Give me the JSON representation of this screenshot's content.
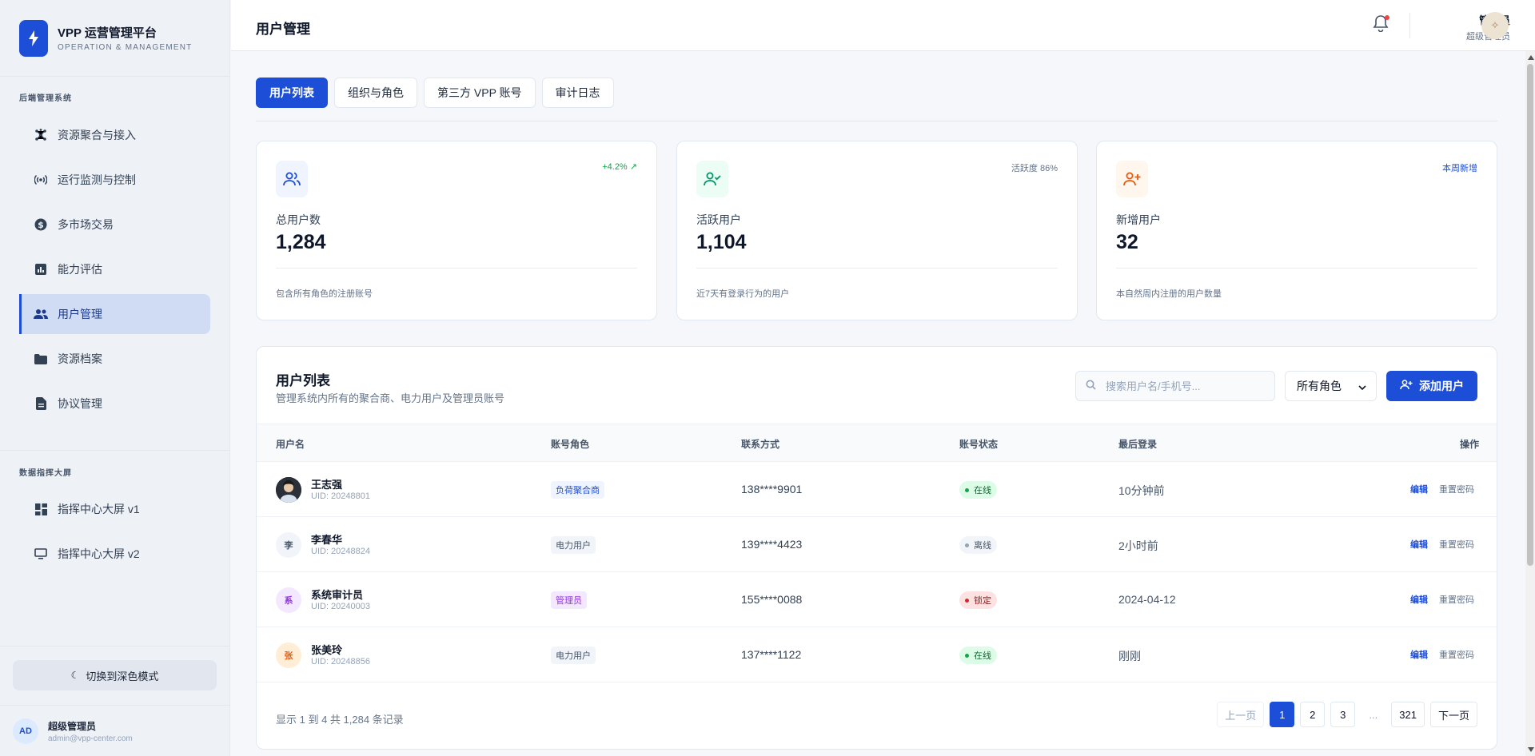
{
  "brand": {
    "title": "VPP 运营管理平台",
    "subtitle": "OPERATION & MANAGEMENT"
  },
  "sidebar": {
    "section1": "后端管理系统",
    "section2": "数据指挥大屏",
    "items": [
      {
        "label": "资源聚合与接入",
        "icon": "cluster-icon"
      },
      {
        "label": "运行监测与控制",
        "icon": "broadcast-icon"
      },
      {
        "label": "多市场交易",
        "icon": "dollar-icon"
      },
      {
        "label": "能力评估",
        "icon": "bar-chart-icon"
      },
      {
        "label": "用户管理",
        "icon": "users-icon",
        "active": true
      },
      {
        "label": "资源档案",
        "icon": "folder-icon"
      },
      {
        "label": "协议管理",
        "icon": "document-icon"
      }
    ],
    "screens": [
      {
        "label": "指挥中心大屏 v1",
        "icon": "dashboard-icon"
      },
      {
        "label": "指挥中心大屏 v2",
        "icon": "monitor-icon"
      }
    ],
    "dark_mode_label": "切换到深色模式",
    "user": {
      "initials": "AD",
      "name": "超级管理员",
      "email": "admin@vpp-center.com"
    }
  },
  "header": {
    "title": "用户管理",
    "user_name": "管理员",
    "user_role": "超级管理员"
  },
  "tabs": [
    "用户列表",
    "组织与角色",
    "第三方 VPP 账号",
    "审计日志"
  ],
  "stats": [
    {
      "label": "总用户数",
      "value": "1,284",
      "badge": "+4.2% ↗",
      "desc": "包含所有角色的注册账号"
    },
    {
      "label": "活跃用户",
      "value": "1,104",
      "badge": "活跃度 86%",
      "desc": "近7天有登录行为的用户"
    },
    {
      "label": "新增用户",
      "value": "32",
      "badge": "本周新增",
      "desc": "本自然周内注册的用户数量"
    }
  ],
  "table": {
    "title": "用户列表",
    "subtitle": "管理系统内所有的聚合商、电力用户及管理员账号",
    "search_placeholder": "搜索用户名/手机号...",
    "role_filter": "所有角色",
    "add_label": "添加用户",
    "columns": [
      "用户名",
      "账号角色",
      "联系方式",
      "账号状态",
      "最后登录",
      "操作"
    ],
    "rows": [
      {
        "avatar": "",
        "name": "王志强",
        "uid": "UID: 20248801",
        "role": "负荷聚合商",
        "contact": "138****9901",
        "status": "在线",
        "last_login": "10分钟前",
        "edit": "编辑",
        "reset": "重置密码"
      },
      {
        "avatar": "李",
        "name": "李春华",
        "uid": "UID: 20248824",
        "role": "电力用户",
        "contact": "139****4423",
        "status": "离线",
        "last_login": "2小时前",
        "edit": "编辑",
        "reset": "重置密码"
      },
      {
        "avatar": "系",
        "name": "系统审计员",
        "uid": "UID: 20240003",
        "role": "管理员",
        "contact": "155****0088",
        "status": "锁定",
        "last_login": "2024-04-12",
        "edit": "编辑",
        "reset": "重置密码"
      },
      {
        "avatar": "张",
        "name": "张美玲",
        "uid": "UID: 20248856",
        "role": "电力用户",
        "contact": "137****1122",
        "status": "在线",
        "last_login": "刚刚",
        "edit": "编辑",
        "reset": "重置密码"
      }
    ],
    "footer": "显示 1 到 4 共 1,284 条记录",
    "pager": {
      "prev": "上一页",
      "pages": [
        "1",
        "2",
        "3"
      ],
      "ellipsis": "...",
      "last": "321",
      "next": "下一页"
    }
  },
  "colors": {
    "primary": "#1d4ed8",
    "online": "#16a34a",
    "offline": "#94a3b8",
    "locked": "#dc2626"
  }
}
